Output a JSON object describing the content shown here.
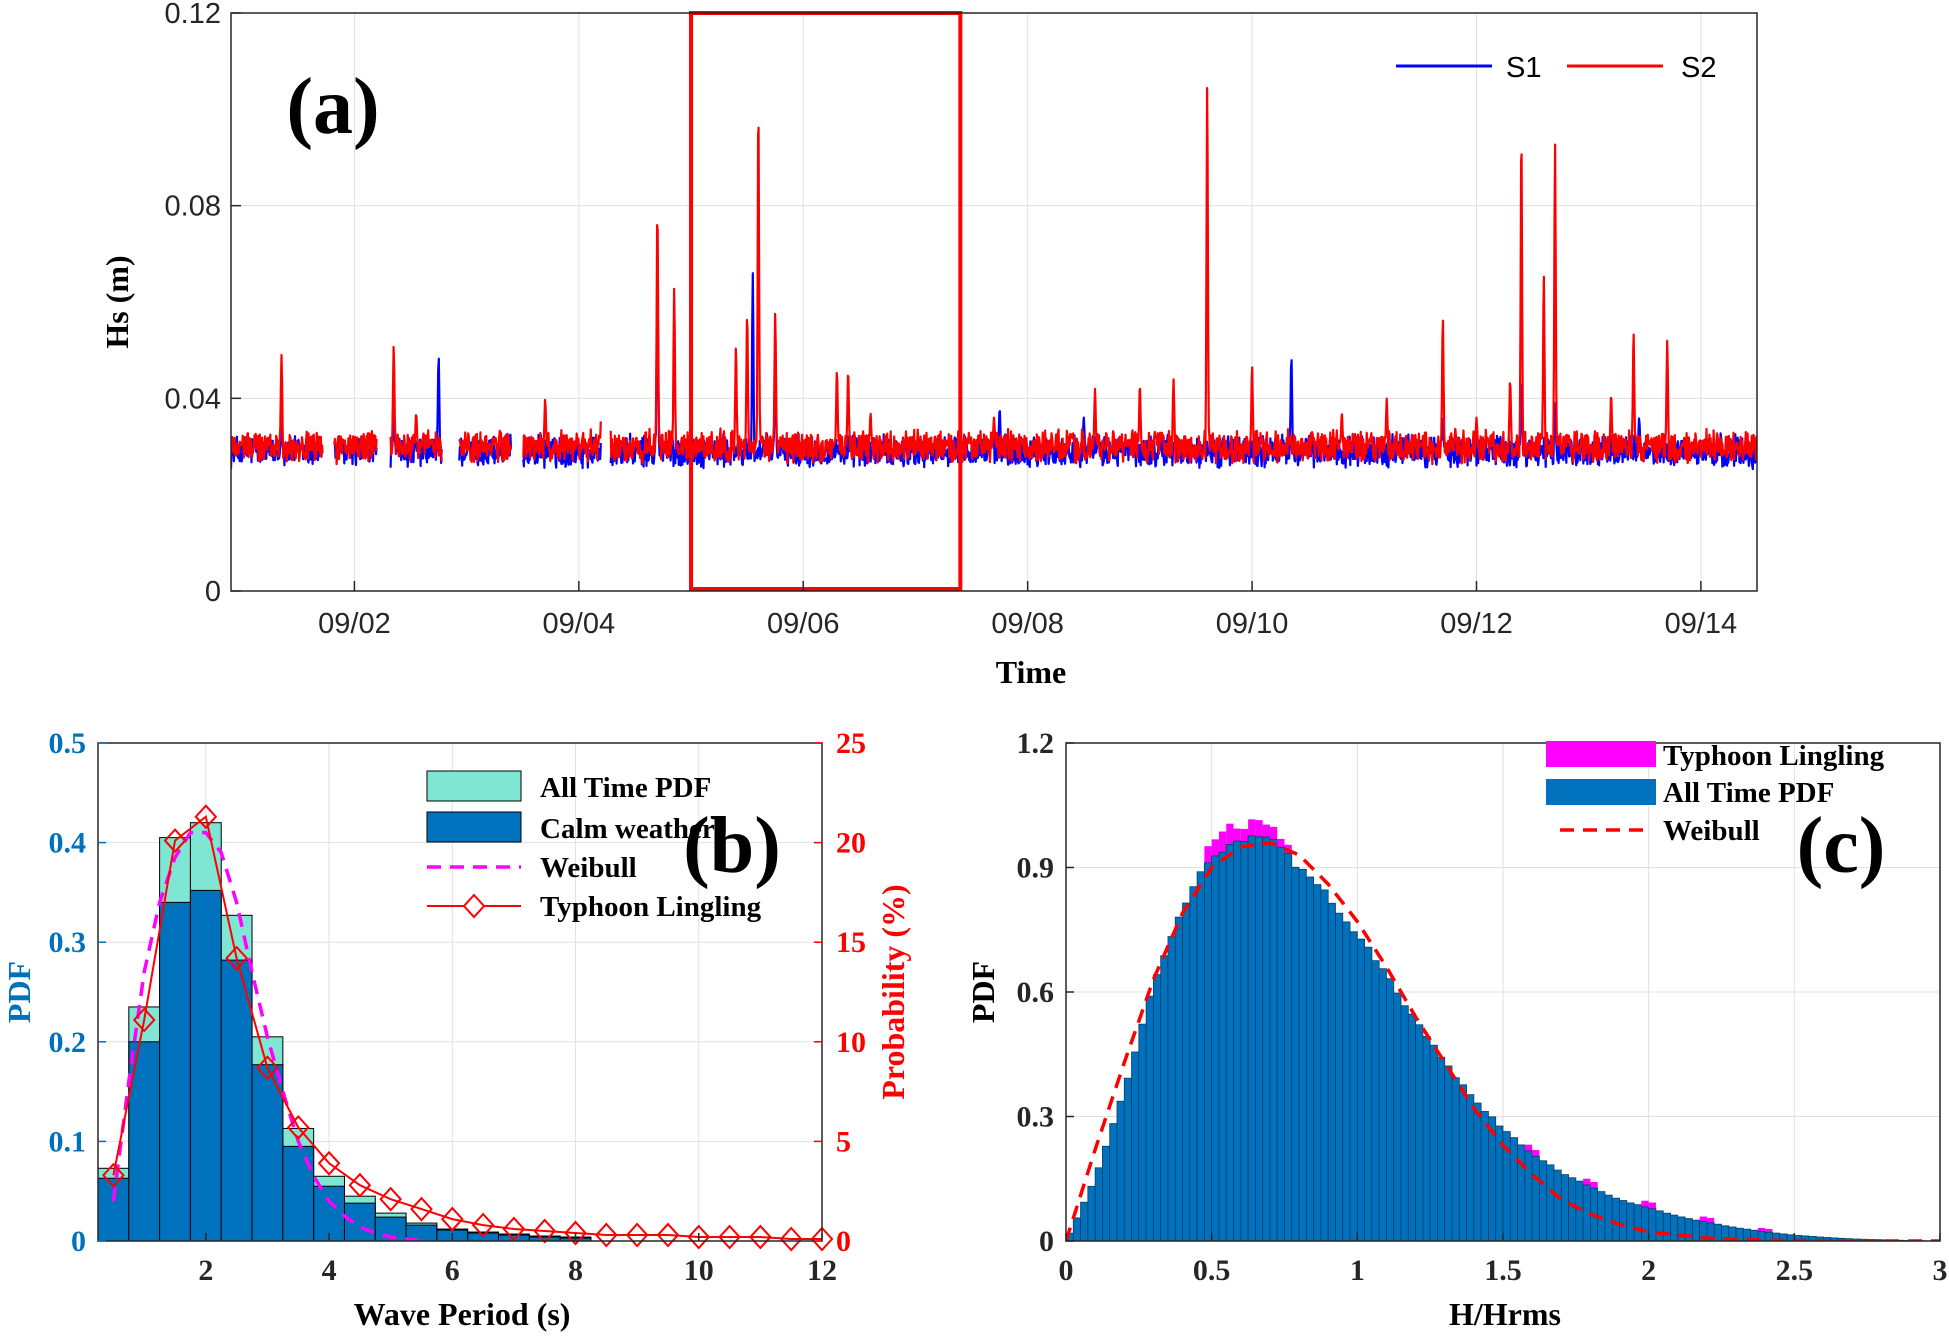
{
  "colors": {
    "s1": "#0000ff",
    "s2": "#ff0000",
    "teal": "#7fe6d4",
    "blue_bar": "#0072bd",
    "magenta": "#ff00ff",
    "red": "#ff0000",
    "left_axis_blue": "#0072bd",
    "grid": "#e0e0e0"
  },
  "chart_data": [
    {
      "id": "a",
      "type": "line",
      "panel_label": "(a)",
      "xlabel": "Time",
      "ylabel": "Hs (m)",
      "ylim": [
        0,
        0.12
      ],
      "xlim_days": [
        0.9,
        14.5
      ],
      "x_ticks": [
        2,
        4,
        6,
        8,
        10,
        12,
        14
      ],
      "x_tick_labels": [
        "09/02",
        "09/04",
        "09/06",
        "09/08",
        "09/10",
        "09/12",
        "09/14"
      ],
      "y_ticks": [
        0,
        0.04,
        0.08,
        0.12
      ],
      "y_tick_labels": [
        "0",
        "0.04",
        "0.08",
        "0.12"
      ],
      "highlight_box_days": [
        5.0,
        7.4
      ],
      "legend": [
        "S1",
        "S2"
      ],
      "baseline": {
        "S1": 0.029,
        "S2": 0.03
      },
      "gaps_days": [
        [
          1.72,
          1.82
        ],
        [
          2.2,
          2.32
        ],
        [
          2.78,
          2.93
        ],
        [
          3.4,
          3.5
        ],
        [
          4.2,
          4.28
        ]
      ],
      "series": [
        {
          "name": "S1",
          "spikes": [
            [
              1.35,
              0.035
            ],
            [
              2.35,
              0.037
            ],
            [
              2.75,
              0.049
            ],
            [
              4.7,
              0.067
            ],
            [
              5.55,
              0.066
            ],
            [
              5.75,
              0.048
            ],
            [
              7.75,
              0.038
            ],
            [
              8.5,
              0.036
            ],
            [
              10.35,
              0.049
            ],
            [
              11.7,
              0.036
            ],
            [
              12.4,
              0.044
            ],
            [
              12.7,
              0.039
            ],
            [
              13.45,
              0.036
            ]
          ]
        },
        {
          "name": "S2",
          "spikes": [
            [
              1.35,
              0.049
            ],
            [
              2.35,
              0.051
            ],
            [
              2.55,
              0.037
            ],
            [
              3.7,
              0.04
            ],
            [
              4.2,
              0.037
            ],
            [
              4.7,
              0.08
            ],
            [
              4.85,
              0.063
            ],
            [
              5.4,
              0.051
            ],
            [
              5.5,
              0.058
            ],
            [
              5.6,
              0.102
            ],
            [
              5.75,
              0.058
            ],
            [
              6.3,
              0.046
            ],
            [
              6.4,
              0.046
            ],
            [
              6.6,
              0.037
            ],
            [
              7.7,
              0.036
            ],
            [
              8.6,
              0.042
            ],
            [
              9.0,
              0.043
            ],
            [
              9.3,
              0.044
            ],
            [
              9.6,
              0.106
            ],
            [
              10.0,
              0.047
            ],
            [
              10.8,
              0.037
            ],
            [
              11.2,
              0.04
            ],
            [
              11.7,
              0.057
            ],
            [
              12.0,
              0.036
            ],
            [
              12.3,
              0.044
            ],
            [
              12.4,
              0.096
            ],
            [
              12.6,
              0.066
            ],
            [
              12.7,
              0.093
            ],
            [
              13.2,
              0.041
            ],
            [
              13.4,
              0.054
            ],
            [
              13.7,
              0.052
            ]
          ]
        }
      ]
    },
    {
      "id": "b",
      "type": "bar",
      "panel_label": "(b)",
      "xlabel": "Wave Period (s)",
      "ylabel": "PDF",
      "ylabel_right": "Probability (%)",
      "xlim": [
        0.25,
        12
      ],
      "ylim": [
        0,
        0.5
      ],
      "ylim_right": [
        0,
        25
      ],
      "x_ticks": [
        2,
        4,
        6,
        8,
        10,
        12
      ],
      "x_tick_labels": [
        "2",
        "4",
        "6",
        "8",
        "10",
        "12"
      ],
      "y_ticks": [
        0,
        0.1,
        0.2,
        0.3,
        0.4,
        0.5
      ],
      "y_tick_labels": [
        "0",
        "0.1",
        "0.2",
        "0.3",
        "0.4",
        "0.5"
      ],
      "y_right_ticks": [
        0,
        5,
        10,
        15,
        20,
        25
      ],
      "y_right_tick_labels": [
        "0",
        "5",
        "10",
        "15",
        "20",
        "25"
      ],
      "bin_edges": [
        0.25,
        0.75,
        1.25,
        1.75,
        2.25,
        2.75,
        3.25,
        3.75,
        4.25,
        4.75,
        5.25,
        5.75,
        6.25,
        6.75,
        7.25,
        7.75,
        8.25
      ],
      "legend": [
        "All Time PDF",
        "Calm weather",
        "Weibull",
        "Typhoon Lingling"
      ],
      "series": [
        {
          "name": "All Time PDF",
          "values": [
            0.073,
            0.235,
            0.405,
            0.42,
            0.327,
            0.205,
            0.113,
            0.065,
            0.045,
            0.028,
            0.018,
            0.012,
            0.009,
            0.007,
            0.005,
            0.004
          ]
        },
        {
          "name": "Calm weather",
          "values": [
            0.063,
            0.2,
            0.34,
            0.352,
            0.282,
            0.177,
            0.095,
            0.055,
            0.038,
            0.024,
            0.016,
            0.011,
            0.008,
            0.006,
            0.004,
            0.003
          ]
        },
        {
          "name": "Weibull",
          "x": [
            0.5,
            0.75,
            1.0,
            1.25,
            1.5,
            1.75,
            2.0,
            2.25,
            2.5,
            2.75,
            3.0,
            3.25,
            3.5,
            3.75,
            4.0,
            4.25,
            4.5,
            4.75,
            5.0,
            5.25,
            5.5
          ],
          "values": [
            0.04,
            0.16,
            0.27,
            0.34,
            0.385,
            0.41,
            0.41,
            0.39,
            0.34,
            0.27,
            0.205,
            0.15,
            0.1,
            0.065,
            0.04,
            0.025,
            0.014,
            0.008,
            0.004,
            0.002,
            0.0
          ]
        },
        {
          "name": "Typhoon Lingling",
          "axis": "right",
          "x": [
            0.5,
            1.0,
            1.5,
            2.0,
            2.5,
            3.0,
            3.5,
            4.0,
            4.5,
            5.0,
            5.5,
            6.0,
            6.5,
            7.0,
            7.5,
            8.0,
            8.5,
            9.0,
            9.5,
            10.0,
            10.5,
            11.0,
            11.5,
            12.0
          ],
          "values": [
            3.3,
            11.1,
            20.1,
            21.3,
            14.2,
            8.7,
            5.7,
            3.9,
            2.8,
            2.1,
            1.6,
            1.1,
            0.8,
            0.6,
            0.5,
            0.4,
            0.3,
            0.3,
            0.3,
            0.2,
            0.2,
            0.2,
            0.1,
            0.1
          ]
        }
      ]
    },
    {
      "id": "c",
      "type": "bar",
      "panel_label": "(c)",
      "xlabel": "H/Hrms",
      "ylabel": "PDF",
      "xlim": [
        0,
        3
      ],
      "ylim": [
        0,
        1.2
      ],
      "x_ticks": [
        0,
        0.5,
        1,
        1.5,
        2,
        2.5,
        3
      ],
      "x_tick_labels": [
        "0",
        "0.5",
        "1",
        "1.5",
        "2",
        "2.5",
        "3"
      ],
      "y_ticks": [
        0,
        0.3,
        0.6,
        0.9,
        1.2
      ],
      "y_tick_labels": [
        "0",
        "0.3",
        "0.6",
        "0.9",
        "1.2"
      ],
      "bin_width": 0.025,
      "legend": [
        "Typhoon Lingling",
        "All Time PDF",
        "Weibull"
      ],
      "series": [
        {
          "name": "All Time PDF",
          "x": [
            0,
            0.1,
            0.2,
            0.3,
            0.4,
            0.5,
            0.6,
            0.65,
            0.7,
            0.8,
            0.9,
            1.0,
            1.1,
            1.2,
            1.3,
            1.4,
            1.5,
            1.6,
            1.7,
            1.8,
            1.9,
            2.0,
            2.1,
            2.2,
            2.3,
            2.4,
            2.5,
            2.6,
            2.7,
            2.8,
            2.9,
            3.0
          ],
          "values": [
            0.0,
            0.15,
            0.36,
            0.62,
            0.8,
            0.93,
            0.97,
            0.98,
            0.97,
            0.9,
            0.83,
            0.74,
            0.64,
            0.53,
            0.43,
            0.34,
            0.27,
            0.21,
            0.165,
            0.13,
            0.1,
            0.08,
            0.06,
            0.045,
            0.032,
            0.022,
            0.014,
            0.009,
            0.005,
            0.003,
            0.001,
            0.0
          ]
        },
        {
          "name": "Typhoon Lingling",
          "excess_x": [
            0.5,
            0.55,
            0.6,
            0.65,
            0.7,
            0.75,
            1.6,
            1.8,
            2.0,
            2.2,
            2.4
          ],
          "excess": [
            0.04,
            0.05,
            0.03,
            0.04,
            0.03,
            0.02,
            0.015,
            0.015,
            0.015,
            0.012,
            0.008
          ]
        },
        {
          "name": "Weibull",
          "x": [
            0,
            0.05,
            0.1,
            0.2,
            0.3,
            0.4,
            0.5,
            0.6,
            0.7,
            0.8,
            0.9,
            1.0,
            1.1,
            1.2,
            1.3,
            1.4,
            1.5,
            1.6,
            1.7,
            1.8,
            1.9,
            2.0,
            2.2,
            2.4,
            2.6,
            2.8,
            3.0
          ],
          "values": [
            0.0,
            0.11,
            0.22,
            0.43,
            0.63,
            0.79,
            0.9,
            0.95,
            0.96,
            0.93,
            0.86,
            0.77,
            0.66,
            0.54,
            0.43,
            0.32,
            0.23,
            0.16,
            0.1,
            0.065,
            0.04,
            0.022,
            0.007,
            0.002,
            0.0005,
            0.0001,
            0.0
          ]
        }
      ]
    }
  ]
}
